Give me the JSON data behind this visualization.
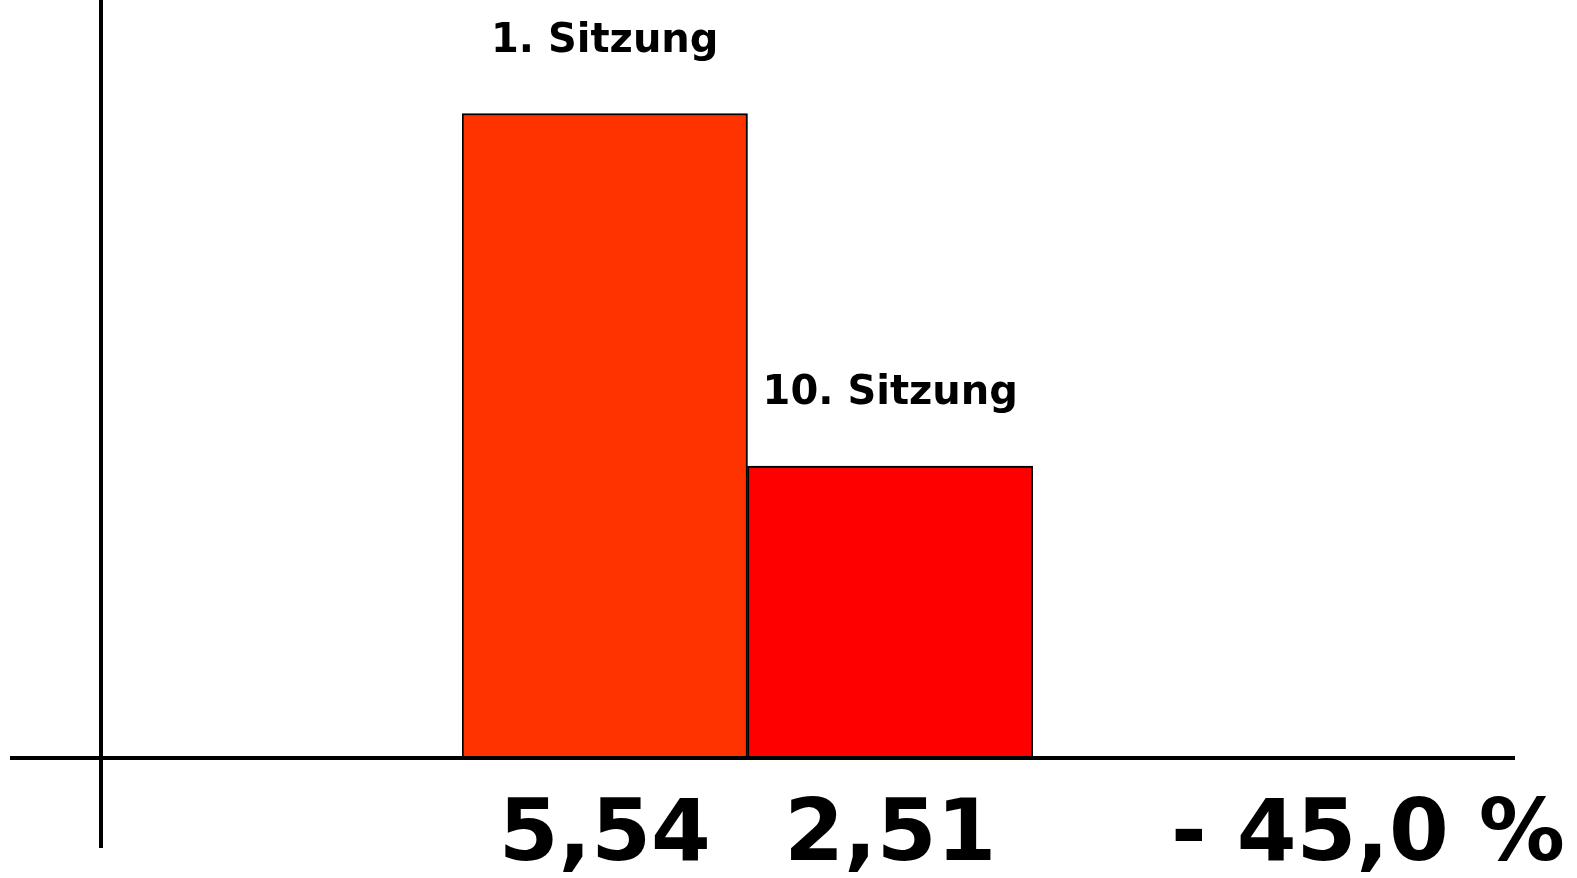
{
  "chart_data": {
    "type": "bar",
    "categories": [
      "1. Sitzung",
      "10. Sitzung"
    ],
    "values": [
      5.54,
      2.51
    ],
    "colors": [
      "#ff3300",
      "#ff0000"
    ],
    "value_labels": [
      "5,54",
      "2,51"
    ],
    "annotations": [
      "- 45,0 %"
    ]
  }
}
